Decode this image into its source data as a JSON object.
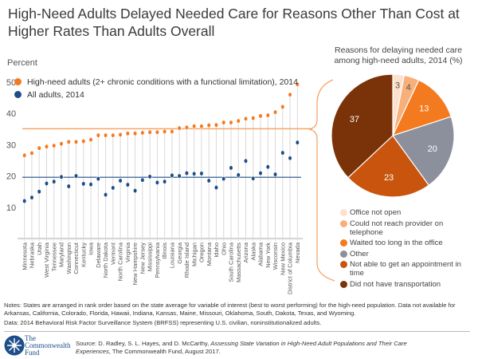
{
  "title": "High-Need Adults Delayed Needed Care for Reasons Other Than Cost at Higher Rates Than Adults Overall",
  "colors": {
    "high_need": "#f47a20",
    "all_adults": "#1d4e89",
    "stems": "#d9d9d9"
  },
  "chart_data": [
    {
      "type": "scatter",
      "ylabel": "Percent",
      "ylim": [
        0,
        50
      ],
      "yticks": [
        10,
        20,
        30,
        40,
        50
      ],
      "grid": false,
      "legend_placement": "top-left",
      "categories": [
        "Minnesota",
        "Nebraska",
        "Utah",
        "West Virginia",
        "Tennessee",
        "Maryland",
        "Washington",
        "Connecticut",
        "Kentucky",
        "Iowa",
        "Delaware",
        "North Dakota",
        "Vermont",
        "North Carolina",
        "Virginia",
        "New Hampshire",
        "New Jersey",
        "Mississippi",
        "Pennsylvania",
        "Illinois",
        "Louisiana",
        "Georgia",
        "Rhode Island",
        "Michigan",
        "Oregon",
        "Montana",
        "Idaho",
        "Ohio",
        "South Carolina",
        "Massachusetts",
        "Arizona",
        "Alaska",
        "Alabama",
        "New York",
        "Wisconsin",
        "New Mexico",
        "District of Columbia",
        "Nevada"
      ],
      "series": [
        {
          "name": "High-need adults (2+ chronic conditions with a functional limitation), 2014",
          "color": "#f47a20",
          "values": [
            26.6,
            27.3,
            28.9,
            29.4,
            29.7,
            30.3,
            30.9,
            30.9,
            31.1,
            31.6,
            33.0,
            33.0,
            33.0,
            33.2,
            33.6,
            33.6,
            33.8,
            34.0,
            34.0,
            34.2,
            34.2,
            35.3,
            35.5,
            35.9,
            35.9,
            36.2,
            36.3,
            37.1,
            37.1,
            37.6,
            38.3,
            38.5,
            39.2,
            39.4,
            40.4,
            42.1,
            46.0,
            49.3
          ],
          "overall_reference": 35.1
        },
        {
          "name": "All adults, 2014",
          "color": "#1d4e89",
          "values": [
            12.0,
            13.1,
            15.0,
            17.6,
            18.2,
            19.7,
            16.7,
            20.0,
            17.5,
            17.3,
            19.1,
            14.0,
            16.2,
            18.5,
            17.2,
            15.3,
            18.7,
            19.8,
            17.9,
            18.2,
            20.2,
            20.0,
            20.9,
            20.7,
            20.8,
            18.5,
            16.3,
            19.1,
            22.6,
            20.3,
            24.8,
            19.2,
            20.9,
            22.9,
            20.5,
            27.4,
            25.7,
            30.7
          ],
          "overall_reference": 19.6
        }
      ]
    },
    {
      "type": "pie",
      "title": "Reasons for delaying needed care among high-need adults, 2014 (%)",
      "categories": [
        "Office not open",
        "Could not reach provider on telephone",
        "Waited too long in the office",
        "Other",
        "Not able to get an appointment in time",
        "Did not have transportation"
      ],
      "values": [
        3,
        4,
        13,
        20,
        23,
        37
      ],
      "labels": [
        "3",
        "4",
        "13",
        "20",
        "23",
        "37"
      ],
      "colors": [
        "#fde1cc",
        "#f8b07a",
        "#f47a20",
        "#8b909c",
        "#c8540e",
        "#7a3308"
      ],
      "legend_placement": "bottom"
    }
  ],
  "notes": "Notes: States are arranged in rank order based on the state average for variable of interest (best to worst performing) for the high-need population.  Data not available for Arkansas, California, Colorado, Florida, Hawaii, Indiana, Kansas, Maine, Missouri, Oklahoma, South, Dakota, Texas, and Wyoming.",
  "data_note": "Data: 2014 Behavioral Risk Factor Surveillance System (BRFSS) representing U.S. civilian, noninstitutionalized adults.",
  "logo": {
    "line1": "The",
    "line2": "Commonwealth",
    "line3": "Fund"
  },
  "source": {
    "prefix": "Source: D. Radley, S. L. Hayes, and D. McCarthy, ",
    "title": "Assessing  State Variation in High-Need Adult Populations and Their Care Experiences",
    "suffix": ", The Commonwealth Fund, August 2017."
  }
}
